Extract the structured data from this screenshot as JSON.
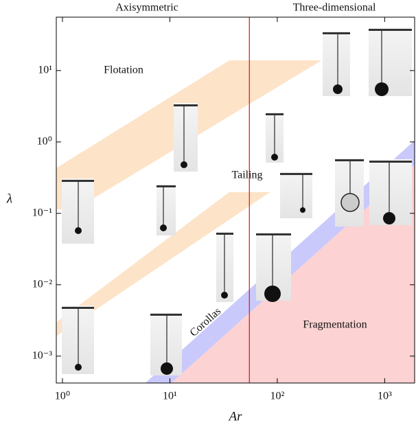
{
  "chart_data": {
    "type": "area",
    "xlabel": "Ar",
    "ylabel": "λ",
    "xlog": true,
    "ylog": true,
    "xlim": [
      0.876,
      1900
    ],
    "ylim": [
      0.00042,
      56
    ],
    "xticks": [
      {
        "value": 1,
        "label": "10⁰"
      },
      {
        "value": 10,
        "label": "10¹"
      },
      {
        "value": 100,
        "label": "10²"
      },
      {
        "value": 1000,
        "label": "10³"
      }
    ],
    "yticks": [
      {
        "value": 0.001,
        "label": "10⁻³"
      },
      {
        "value": 0.01,
        "label": "10⁻²"
      },
      {
        "value": 0.1,
        "label": "10⁻¹"
      },
      {
        "value": 1,
        "label": "10⁰"
      },
      {
        "value": 10,
        "label": "10¹"
      }
    ],
    "vline": {
      "x": 55,
      "color": "#e02020"
    },
    "regions": [
      {
        "color": "#fde3c8",
        "x": [
          0.876,
          35.8,
          259,
          1.32,
          0.876
        ],
        "y": [
          0.43,
          13.9,
          13.9,
          0.114,
          0.114
        ]
      },
      {
        "color": "#fde3c8",
        "x": [
          0.876,
          35.8,
          86,
          0.876
        ],
        "y": [
          0.00296,
          0.199,
          0.199,
          0.0019
        ]
      },
      {
        "color": "#c9c9fb",
        "x": [
          5.9,
          1900,
          1900,
          10.3
        ],
        "y": [
          0.00042,
          1.05,
          0.48,
          0.00042
        ]
      },
      {
        "color": "#fcd2d2",
        "x": [
          10.3,
          1900,
          1900
        ],
        "y": [
          0.00042,
          0.48,
          0.00042
        ]
      }
    ],
    "annotations": [
      "Axisymmetric",
      "Three-dimensional",
      "Flotation",
      "Tailing",
      "Corollas",
      "Fragmentation"
    ]
  }
}
